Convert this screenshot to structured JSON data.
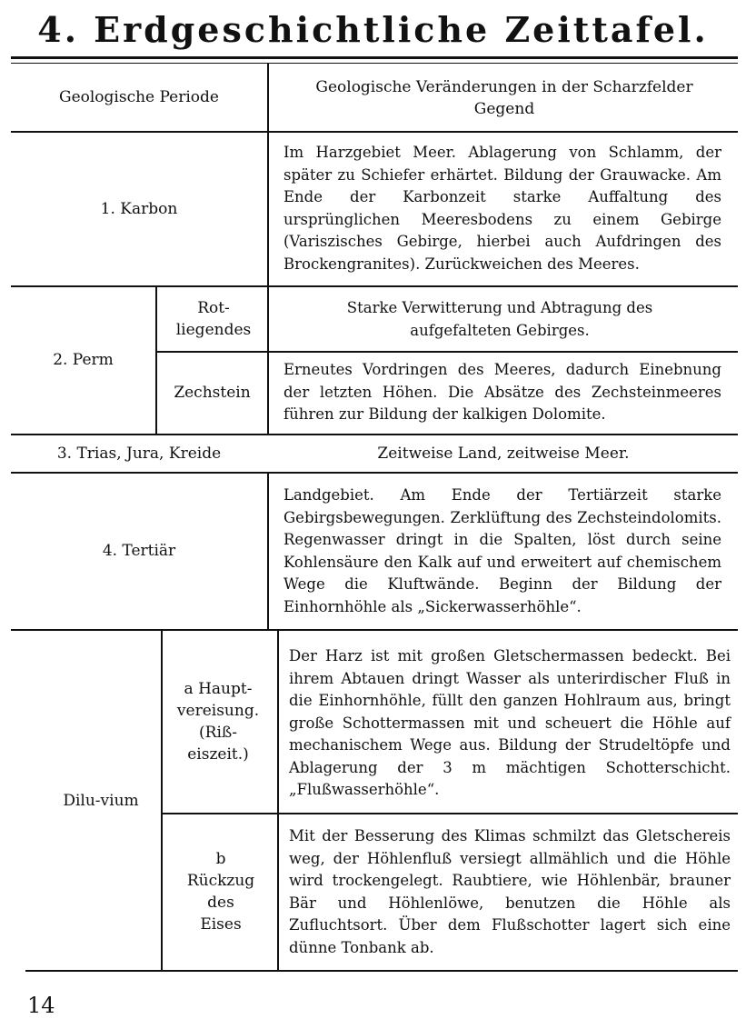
{
  "title": "4. Erdgeschichtliche Zeittafel.",
  "header": {
    "period": "Geologische Periode",
    "changes": "Geologische Veränderungen in der Scharzfelder Gegend"
  },
  "rows": {
    "karbon": {
      "period": "1. Karbon",
      "text": "Im Harzgebiet Meer. Ablagerung von Schlamm, der später zu Schiefer erhärtet. Bildung der Grauwacke. Am Ende der Karbonzeit starke Auffaltung des ursprünglichen Meeresbodens zu einem Gebirge (Variszisches Gebirge, hierbei auch Aufdringen des Brockengranites). Zurückweichen des Meeres."
    },
    "perm": {
      "period": "2. Perm",
      "sub1": "Rot-liegendes",
      "text1": "Starke Verwitterung und Abtragung des aufgefalteten Gebirges.",
      "sub2": "Zechstein",
      "text2": "Erneutes Vordringen des Meeres, dadurch Einebnung der letzten Höhen. Die Absätze des Zechsteinmeeres führen zur Bildung der kalkigen Dolomite."
    },
    "trias": {
      "period": "3. Trias, Jura, Kreide",
      "text": "Zeitweise Land, zeitweise Meer."
    },
    "tertiaer": {
      "period": "4. Tertiär",
      "text": "Landgebiet. Am Ende der Tertiärzeit starke Gebirgsbewegungen. Zerklüftung des Zechsteindolomits. Regenwasser dringt in die Spalten, löst durch seine Kohlensäure den Kalk auf und erweitert auf chemischem Wege die Kluftwände. Beginn der Bildung der Einhornhöhle als „Sickerwasserhöhle“."
    },
    "diluvium": {
      "period": "Dilu-vium",
      "sub_a": "a Haupt-vereisung. (Riß-eiszeit.)",
      "text_a": "Der Harz ist mit großen Gletschermassen bedeckt. Bei ihrem Abtauen dringt Wasser als unterirdischer Fluß in die Einhornhöhle, füllt den ganzen Hohlraum aus, bringt große Schottermassen mit und scheuert die Höhle auf mechanischem Wege aus. Bildung der Strudeltöpfe und Ablagerung der 3 m mächtigen Schotterschicht. „Flußwasserhöhle“.",
      "sub_b": "b Rückzug des Eises",
      "text_b": "Mit der Besserung des Klimas schmilzt das Gletschereis weg, der Höhlenfluß versiegt allmählich und die Höhle wird trockengelegt. Raubtiere, wie Höhlenbär, brauner Bär und Höhlenlöwe, benutzen die Höhle als Zufluchtsort. Über dem Flußschotter lagert sich eine dünne Tonbank ab."
    }
  },
  "page_number": "14"
}
